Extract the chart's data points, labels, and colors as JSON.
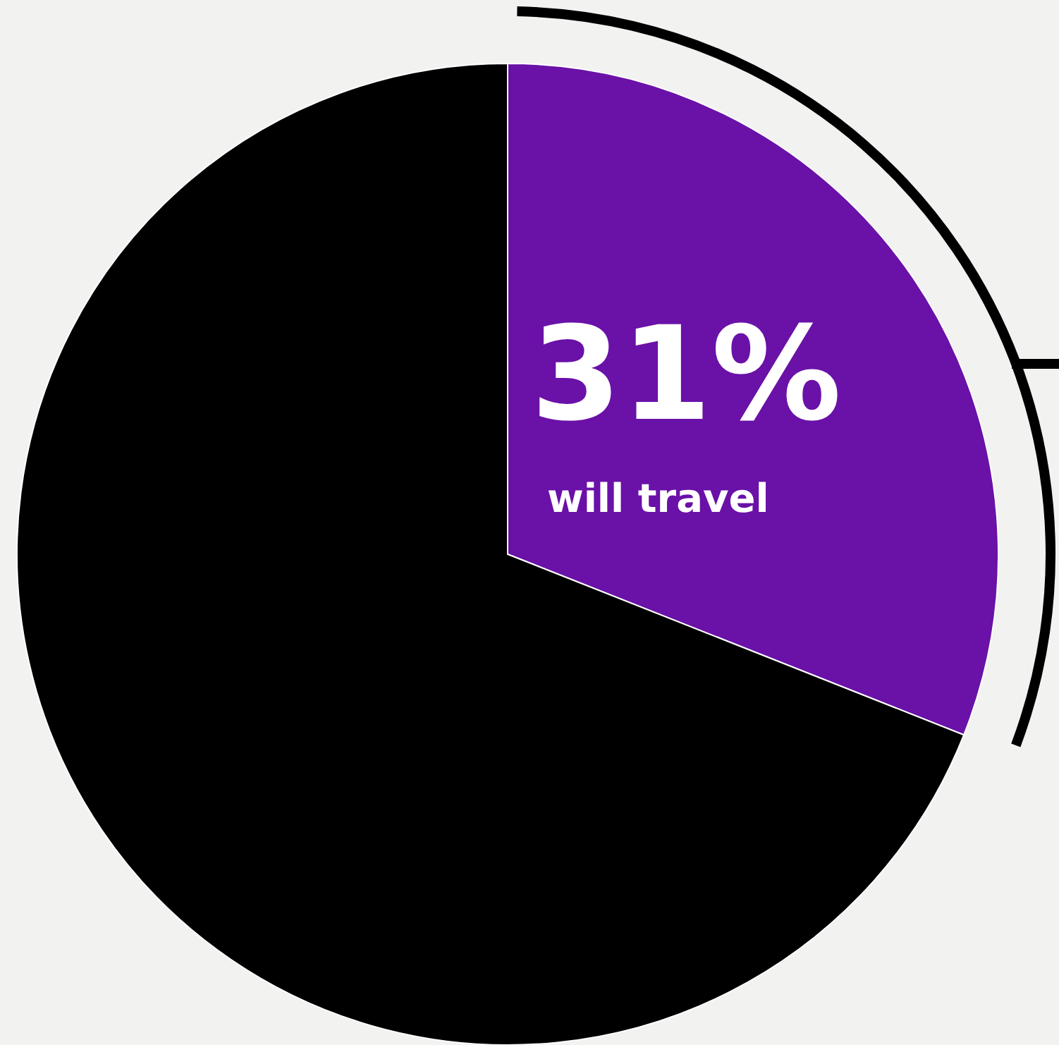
{
  "chart_data": {
    "type": "pie",
    "categories": [
      "will travel",
      null
    ],
    "values": [
      31,
      69
    ],
    "colors": [
      "#6a11a8",
      "#000000"
    ],
    "value_labels": [
      "31%",
      null
    ]
  }
}
